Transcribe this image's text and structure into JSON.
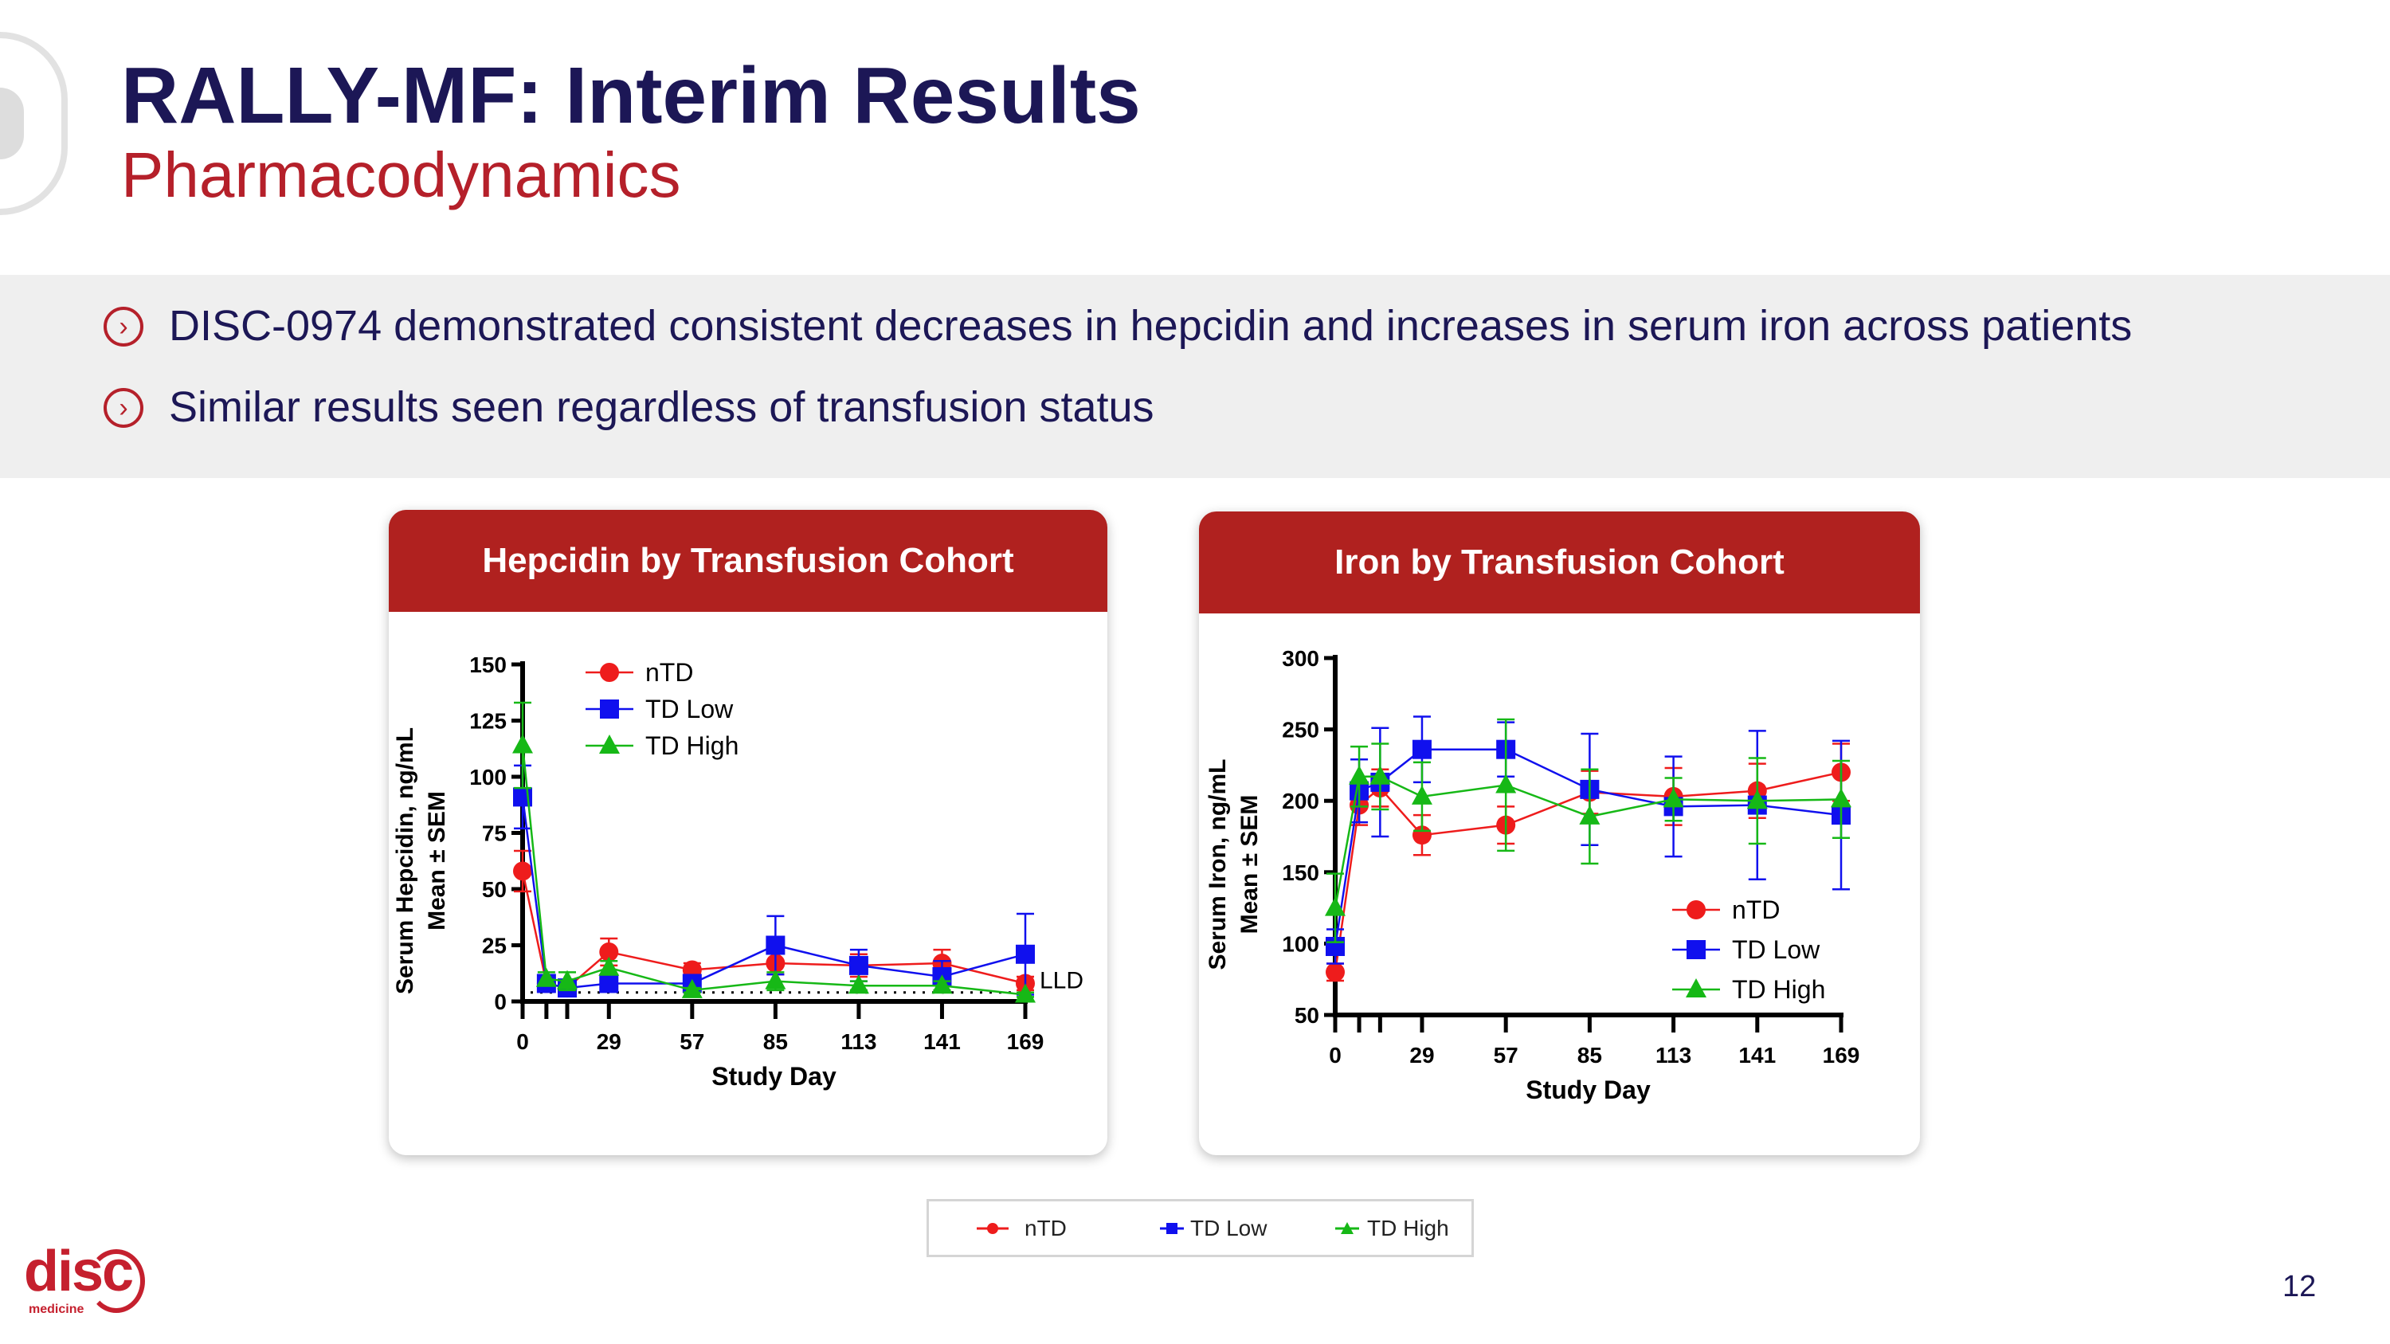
{
  "header": {
    "title": "RALLY-MF: Interim Results",
    "subtitle": "Pharmacodynamics"
  },
  "bullets": [
    "DISC-0974 demonstrated consistent decreases in hepcidin and increases in serum iron across patients",
    "Similar results seen regardless of transfusion status"
  ],
  "colors": {
    "nTD": "#ee1c1c",
    "TD Low": "#1010ee",
    "TD High": "#16b816",
    "accent": "#b0211f",
    "title": "#1c1756"
  },
  "chart_data": [
    {
      "type": "line",
      "title": "Hepcidin by Transfusion Cohort",
      "ylabel": [
        "Serum Hepcidin, ng/mL",
        "Mean ± SEM"
      ],
      "xlabel": "Study Day",
      "x": [
        0,
        8,
        15,
        29,
        57,
        85,
        113,
        141,
        169
      ],
      "xticks": [
        "0",
        "29",
        "57",
        "85",
        "113",
        "141",
        "169"
      ],
      "xtick_values": [
        0,
        29,
        57,
        85,
        113,
        141,
        169
      ],
      "yticks": [
        0,
        25,
        50,
        75,
        100,
        125,
        150
      ],
      "ylim": [
        0,
        150
      ],
      "legend": "top-left",
      "annotation": "LLD",
      "lld": 4,
      "series": [
        {
          "name": "nTD",
          "marker": "circle",
          "values": [
            58,
            8,
            6,
            22,
            14,
            17,
            16,
            17,
            8
          ],
          "sem": [
            9,
            3,
            2,
            6,
            3,
            5,
            5,
            6,
            3
          ]
        },
        {
          "name": "TD Low",
          "marker": "square",
          "values": [
            91,
            8,
            6,
            8,
            8,
            25,
            16,
            11,
            21
          ],
          "sem": [
            14,
            3,
            2,
            3,
            3,
            13,
            7,
            7,
            18
          ]
        },
        {
          "name": "TD High",
          "marker": "triangle",
          "values": [
            114,
            10,
            9,
            15,
            5,
            9,
            7,
            7,
            3
          ],
          "sem": [
            19,
            3,
            4,
            3,
            1,
            4,
            2,
            2,
            1
          ]
        }
      ]
    },
    {
      "type": "line",
      "title": "Iron by Transfusion Cohort",
      "ylabel": [
        "Serum Iron, ng/mL",
        "Mean ± SEM"
      ],
      "xlabel": "Study Day",
      "x": [
        0,
        8,
        15,
        29,
        57,
        85,
        113,
        141,
        169
      ],
      "xticks": [
        "0",
        "29",
        "57",
        "85",
        "113",
        "141",
        "169"
      ],
      "xtick_values": [
        0,
        29,
        57,
        85,
        113,
        141,
        169
      ],
      "yticks": [
        50,
        100,
        150,
        200,
        250,
        300
      ],
      "ylim": [
        50,
        300
      ],
      "legend": "bottom-right",
      "series": [
        {
          "name": "nTD",
          "marker": "circle",
          "values": [
            80,
            197,
            209,
            176,
            183,
            206,
            203,
            207,
            220
          ],
          "sem": [
            6,
            14,
            13,
            14,
            13,
            15,
            20,
            19,
            20
          ]
        },
        {
          "name": "TD Low",
          "marker": "square",
          "values": [
            98,
            207,
            213,
            236,
            236,
            208,
            196,
            197,
            190
          ],
          "sem": [
            12,
            22,
            38,
            23,
            19,
            39,
            35,
            52,
            52
          ]
        },
        {
          "name": "TD High",
          "marker": "triangle",
          "values": [
            125,
            217,
            217,
            203,
            211,
            189,
            201,
            200,
            201
          ],
          "sem": [
            24,
            21,
            23,
            24,
            46,
            33,
            15,
            30,
            27
          ]
        }
      ]
    }
  ],
  "bottom_legend": [
    "nTD",
    "TD Low",
    "TD High"
  ],
  "logo": {
    "text": "disc",
    "sub": "medicine"
  },
  "page_number": "12"
}
